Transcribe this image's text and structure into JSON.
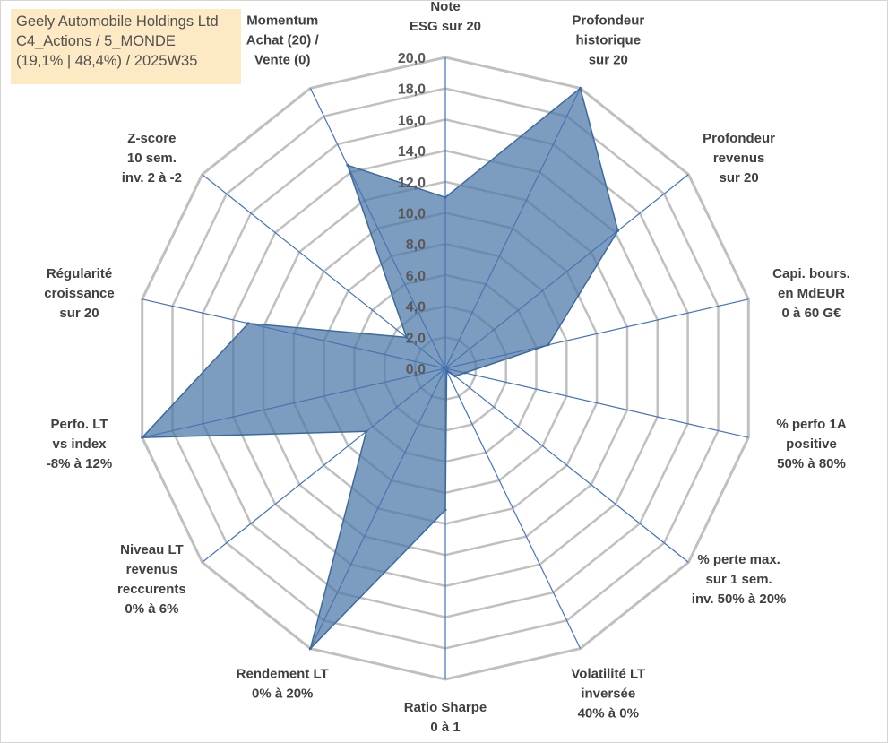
{
  "info_box": {
    "line1": "Geely Automobile Holdings Ltd",
    "line2": "C4_Actions / 5_MONDE",
    "line3": "(19,1% | 48,4%) / 2025W35"
  },
  "chart_data": {
    "type": "radar",
    "title": "",
    "range": [
      0,
      20
    ],
    "tick_step": 2,
    "tick_labels": [
      "0,0",
      "2,0",
      "4,0",
      "6,0",
      "8,0",
      "10,0",
      "12,0",
      "14,0",
      "16,0",
      "18,0",
      "20,0"
    ],
    "grid": true,
    "colors": {
      "fill": "#4a76a8",
      "stroke": "#3d6a9e",
      "grid": "#c0c0c0",
      "axis": "#4472c4"
    },
    "axes": [
      {
        "lines": [
          "Note",
          "ESG sur 20"
        ]
      },
      {
        "lines": [
          "Profondeur",
          "historique",
          "sur 20"
        ]
      },
      {
        "lines": [
          "Profondeur",
          "revenus",
          "sur 20"
        ]
      },
      {
        "lines": [
          "Capi. bours.",
          "en MdEUR",
          "0 à 60 G€"
        ]
      },
      {
        "lines": [
          "% perfo 1A",
          "positive",
          "50% à 80%"
        ]
      },
      {
        "lines": [
          "% perte max.",
          "sur 1 sem.",
          "inv. 50% à 20%"
        ]
      },
      {
        "lines": [
          "Volatilité LT",
          "inversée",
          "40% à 0%"
        ]
      },
      {
        "lines": [
          "Ratio Sharpe",
          "0 à 1"
        ]
      },
      {
        "lines": [
          "Rendement LT",
          "0% à 20%"
        ]
      },
      {
        "lines": [
          "Niveau LT",
          "revenus",
          "reccurents",
          "0% à 6%"
        ]
      },
      {
        "lines": [
          "Perfo. LT",
          "vs index",
          "-8% à 12%"
        ]
      },
      {
        "lines": [
          "Régularité",
          "croissance",
          "sur 20"
        ]
      },
      {
        "lines": [
          "Z-score",
          "10 sem.",
          "inv. 2 à -2"
        ]
      },
      {
        "lines": [
          "Momentum",
          "Achat (20) /",
          "Vente (0)"
        ]
      }
    ],
    "values": [
      11.0,
      20.0,
      14.2,
      6.8,
      1.3,
      0.8,
      0.2,
      9.1,
      20.0,
      6.5,
      20.0,
      13.0,
      3.2,
      14.5
    ]
  }
}
